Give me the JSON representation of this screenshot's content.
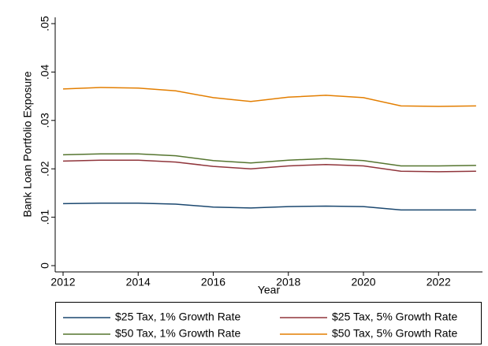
{
  "chart_data": {
    "type": "line",
    "y_label": "Bank Loan Portfolio Exposure",
    "x_label": "Year",
    "x": [
      2012,
      2013,
      2014,
      2015,
      2016,
      2017,
      2018,
      2019,
      2020,
      2021,
      2022,
      2023
    ],
    "series": [
      {
        "name": "$25 Tax, 1% Growth Rate",
        "color": "#1a476f",
        "values": [
          0.0128,
          0.0129,
          0.0129,
          0.0127,
          0.0121,
          0.0119,
          0.0122,
          0.0123,
          0.0122,
          0.0115,
          0.0115,
          0.0115
        ]
      },
      {
        "name": "$25 Tax, 5% Growth Rate",
        "color": "#90353b",
        "values": [
          0.0216,
          0.0218,
          0.0218,
          0.0214,
          0.0205,
          0.02,
          0.0206,
          0.0209,
          0.0206,
          0.0195,
          0.0194,
          0.0195
        ]
      },
      {
        "name": "$50 Tax, 1% Growth Rate",
        "color": "#55752f",
        "values": [
          0.0229,
          0.0231,
          0.0231,
          0.0227,
          0.0217,
          0.0212,
          0.0218,
          0.0221,
          0.0217,
          0.0206,
          0.0206,
          0.0207
        ]
      },
      {
        "name": "$50 Tax, 5% Growth Rate",
        "color": "#e37e00",
        "values": [
          0.0365,
          0.0368,
          0.0367,
          0.0361,
          0.0347,
          0.0339,
          0.0348,
          0.0352,
          0.0347,
          0.033,
          0.0329,
          0.033
        ]
      }
    ],
    "xlim": [
      2011.79,
      2023.17
    ],
    "xticks": [
      2012,
      2014,
      2016,
      2018,
      2020,
      2022
    ],
    "ylim": [
      -0.0013,
      0.0513
    ],
    "yticks": [
      0,
      {
        "value": 0.01,
        "label": ".01"
      },
      {
        "value": 0.02,
        "label": ".02"
      },
      {
        "value": 0.03,
        "label": ".03"
      },
      {
        "value": 0.04,
        "label": ".04"
      },
      {
        "value": 0.05,
        "label": ".05"
      }
    ],
    "grid": false,
    "legend": "bottom"
  }
}
